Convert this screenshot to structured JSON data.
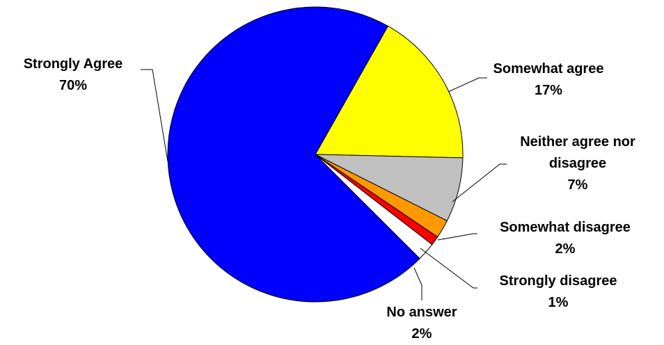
{
  "chart_data": {
    "type": "pie",
    "start_angle_deg": 60.5,
    "direction": "clockwise",
    "slices": [
      {
        "label_lines": [
          "Somewhat agree"
        ],
        "value": 17,
        "pct_label": "17%",
        "color": "#FFFF00"
      },
      {
        "label_lines": [
          "Neither agree nor",
          "disagree"
        ],
        "value": 7,
        "pct_label": "7%",
        "color": "#C0C0C0"
      },
      {
        "label_lines": [
          "Somewhat disagree"
        ],
        "value": 2,
        "pct_label": "2%",
        "color": "#FF9900"
      },
      {
        "label_lines": [
          "Strongly disagree"
        ],
        "value": 1,
        "pct_label": "1%",
        "color": "#FF0000"
      },
      {
        "label_lines": [
          "No answer"
        ],
        "value": 2,
        "pct_label": "2%",
        "color": "#FFFFFF"
      },
      {
        "label_lines": [
          "Strongly Agree"
        ],
        "value": 70,
        "pct_label": "70%",
        "color": "#0000FF"
      }
    ]
  }
}
